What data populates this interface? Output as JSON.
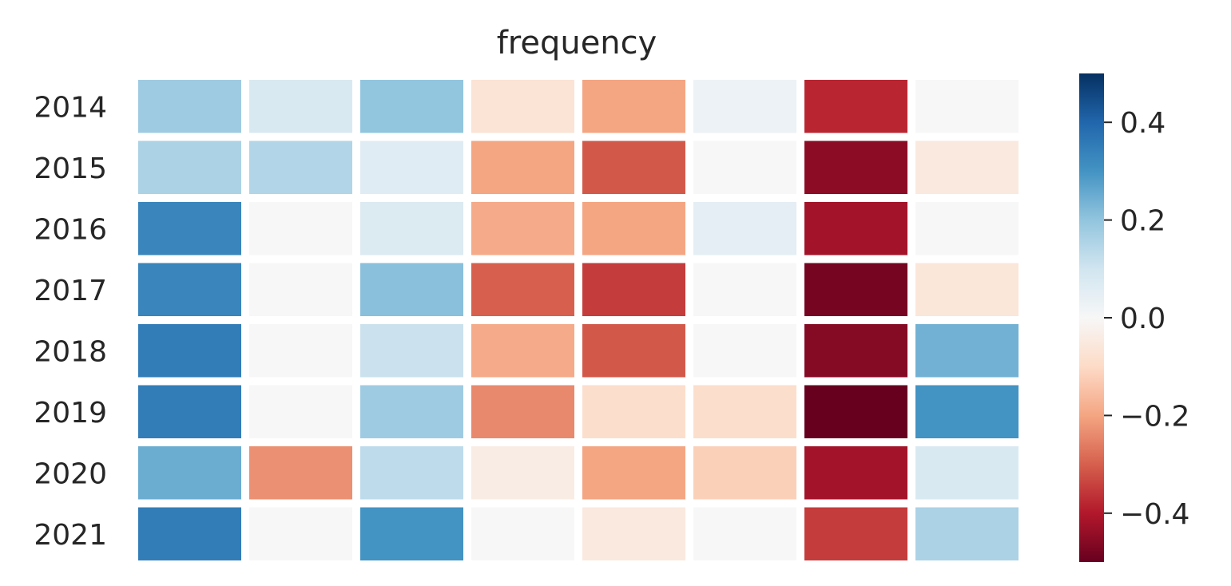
{
  "chart_data": {
    "type": "heatmap",
    "title": "frequency",
    "xlabel": "",
    "ylabel": "",
    "rows": [
      "2014",
      "2015",
      "2016",
      "2017",
      "2018",
      "2019",
      "2020",
      "2021"
    ],
    "columns_count": 8,
    "values": [
      [
        0.18,
        0.08,
        0.2,
        -0.07,
        -0.2,
        0.03,
        -0.38,
        0.0
      ],
      [
        0.16,
        0.15,
        0.06,
        -0.2,
        -0.31,
        0.0,
        -0.45,
        -0.05
      ],
      [
        0.33,
        0.0,
        0.07,
        -0.19,
        -0.2,
        0.05,
        -0.42,
        0.0
      ],
      [
        0.33,
        0.0,
        0.21,
        -0.3,
        -0.35,
        0.0,
        -0.48,
        -0.06
      ],
      [
        0.35,
        0.0,
        0.11,
        -0.19,
        -0.31,
        0.0,
        -0.46,
        0.24
      ],
      [
        0.35,
        0.0,
        0.18,
        -0.24,
        -0.09,
        -0.09,
        -0.5,
        0.3
      ],
      [
        0.25,
        -0.23,
        0.13,
        -0.04,
        -0.2,
        -0.12,
        -0.42,
        0.08
      ],
      [
        0.35,
        0.0,
        0.3,
        0.0,
        -0.05,
        0.0,
        -0.35,
        0.16
      ]
    ],
    "colorbar": {
      "cmap": "RdBu",
      "vmin": -0.5,
      "vmax": 0.5,
      "ticks": [
        0.4,
        0.2,
        0.0,
        -0.2,
        -0.4
      ],
      "tick_labels": [
        "0.4",
        "0.2",
        "0.0",
        "−0.2",
        "−0.4"
      ]
    },
    "grid": false
  }
}
